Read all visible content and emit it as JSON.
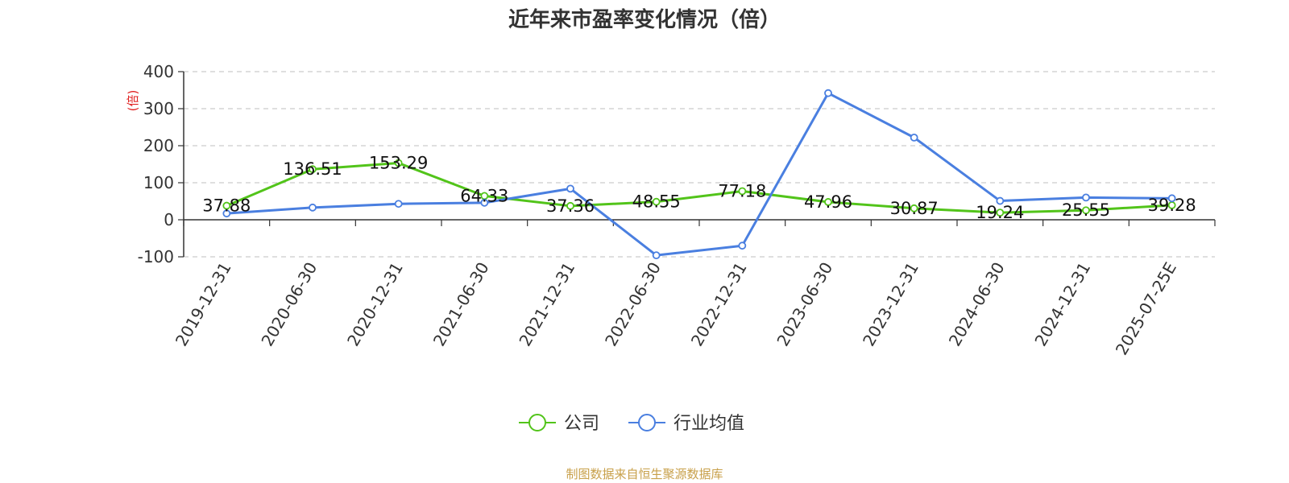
{
  "chart_data": {
    "type": "line",
    "title": "近年来市盈率变化情况（倍）",
    "ylabel": "(倍)",
    "ylim": [
      -100,
      400
    ],
    "yticks": [
      -100,
      0,
      100,
      200,
      300,
      400
    ],
    "categories": [
      "2019-12-31",
      "2020-06-30",
      "2020-12-31",
      "2021-06-30",
      "2021-12-31",
      "2022-06-30",
      "2022-12-31",
      "2023-06-30",
      "2023-12-31",
      "2024-06-30",
      "2024-12-31",
      "2025-07-25E"
    ],
    "series": [
      {
        "name": "公司",
        "color": "#52c41a",
        "show_labels": true,
        "labels": [
          "37.88",
          "136.51",
          "153.29",
          "64.33",
          "37.36",
          "48.55",
          "77.18",
          "47.96",
          "30.87",
          "19.24",
          "25.55",
          "39.28"
        ],
        "values": [
          37.88,
          136.51,
          153.29,
          64.33,
          37.36,
          48.55,
          77.18,
          47.96,
          30.87,
          19.24,
          25.55,
          39.28
        ]
      },
      {
        "name": "行业均值",
        "color": "#4a7fe0",
        "show_labels": false,
        "values": [
          17,
          33,
          43,
          46,
          84,
          -96,
          -70,
          342,
          222,
          51,
          60,
          58
        ]
      }
    ],
    "grid": true,
    "legend_position": "bottom-center"
  },
  "source_note": "制图数据来自恒生聚源数据库"
}
